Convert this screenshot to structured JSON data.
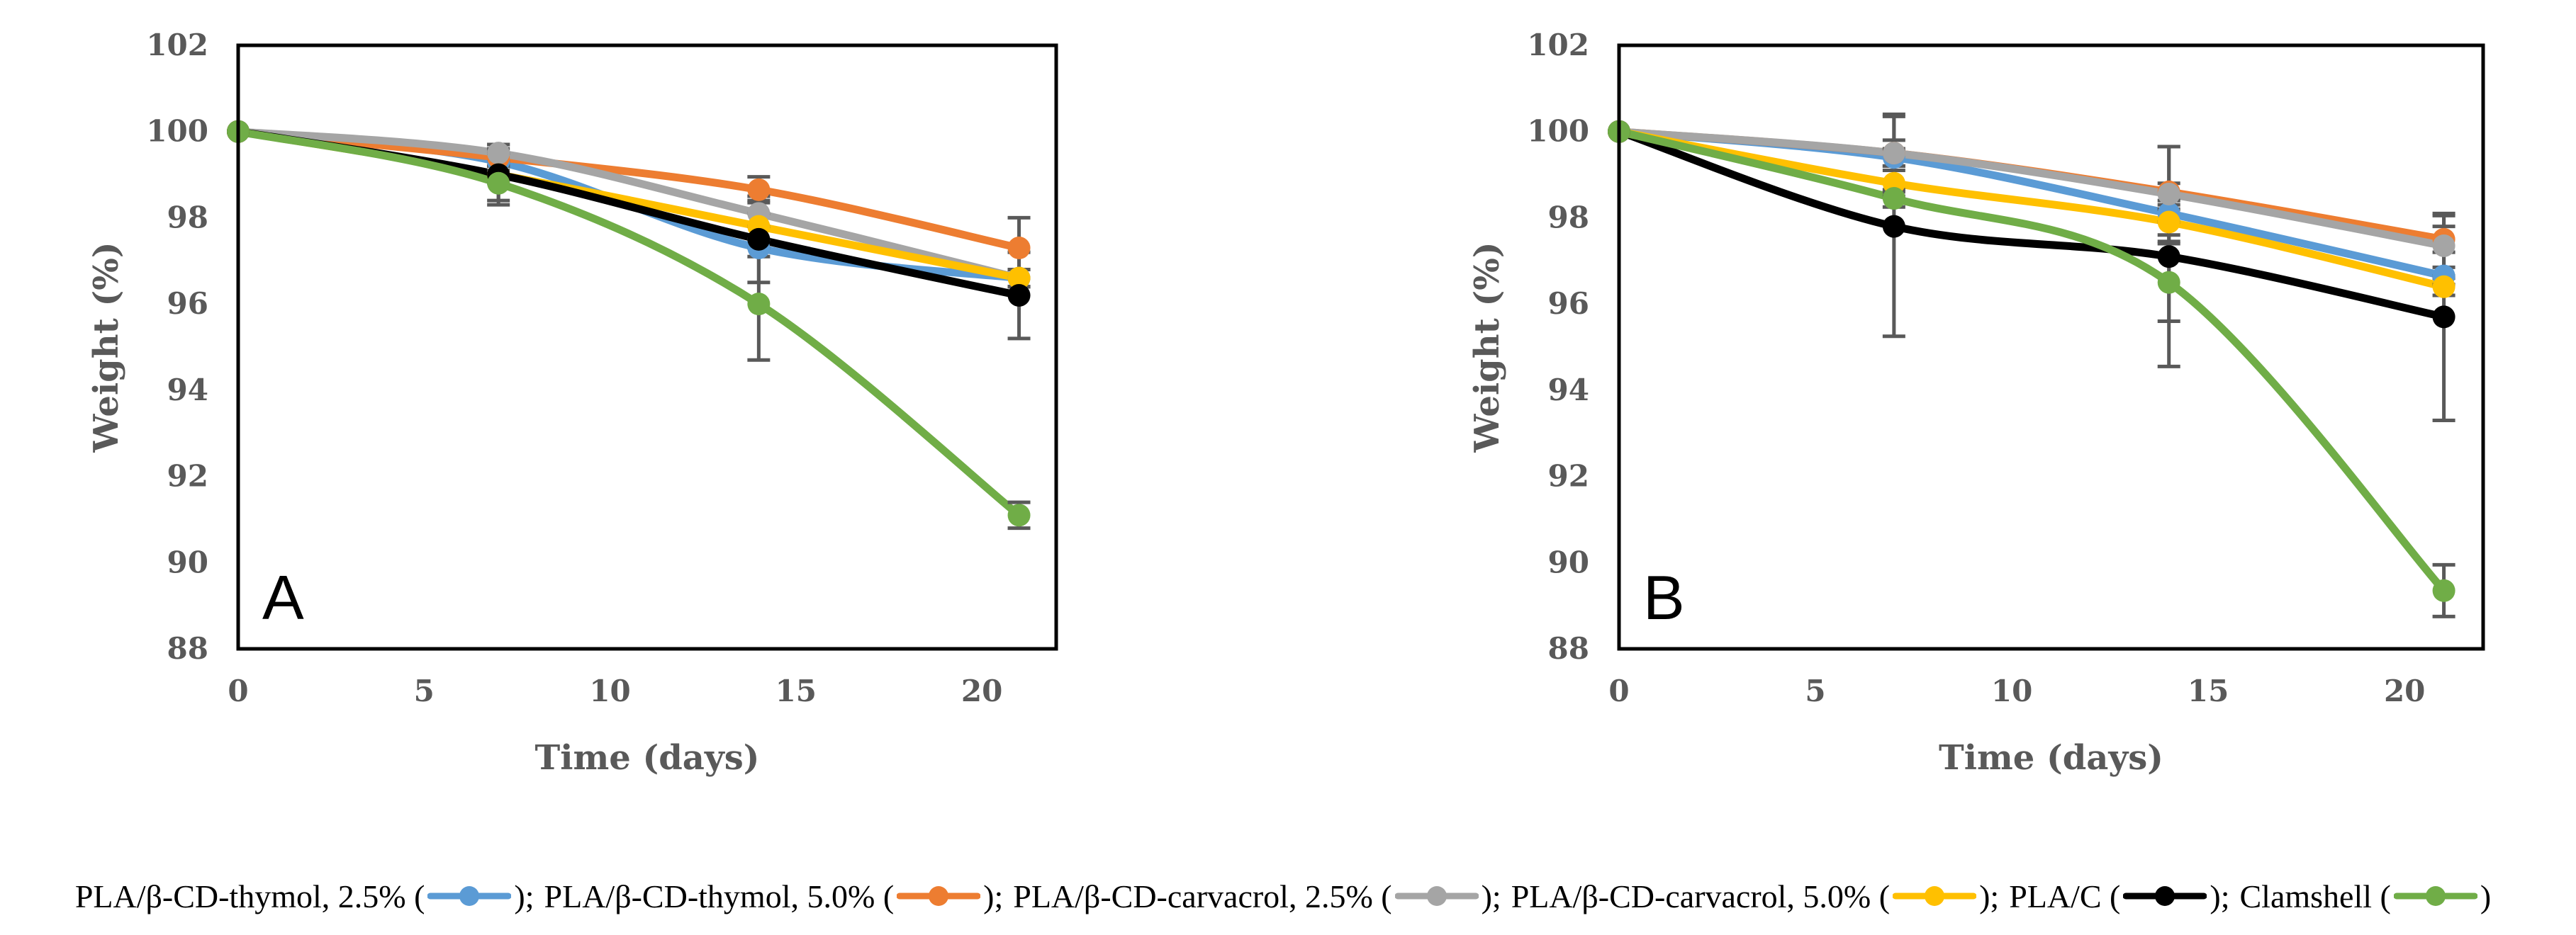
{
  "colors": {
    "blue": "#5B9BD5",
    "orange": "#ED7D31",
    "gray": "#A5A5A5",
    "yellow": "#FFC000",
    "black": "#000000",
    "green": "#70AD47",
    "axis_text": "#595959",
    "error_bar": "#595959"
  },
  "legend": {
    "items": [
      {
        "label": "PLA/β-CD-thymol,  2.5% (",
        "color": "#5B9BD5",
        "sep": ";"
      },
      {
        "label": " PLA/β-CD-thymol,  5.0% (",
        "color": "#ED7D31",
        "sep": ";"
      },
      {
        "label": " PLA/β-CD-carvacrol,  2.5% (",
        "color": "#A5A5A5",
        "sep": ";"
      },
      {
        "label": " PLA/β-CD-carvacrol,  5.0% (",
        "color": "#FFC000",
        "sep": ";"
      },
      {
        "label": " PLA/C (",
        "color": "#000000",
        "sep": ";"
      },
      {
        "label": " Clamshell (",
        "color": "#70AD47",
        "sep": ""
      }
    ]
  },
  "chart_data": [
    {
      "type": "line",
      "panel_label": "A",
      "title": "",
      "xlabel": "Time (days)",
      "ylabel": "Weight (%)",
      "xlim": [
        0,
        22
      ],
      "ylim": [
        88,
        102
      ],
      "x_ticks": [
        0,
        5,
        10,
        15,
        20
      ],
      "y_ticks": [
        88,
        90,
        92,
        94,
        96,
        98,
        100,
        102
      ],
      "x": [
        0,
        7,
        14,
        21
      ],
      "series": [
        {
          "name": "PLA/β-CD-thymol, 2.5%",
          "color": "#5B9BD5",
          "values": [
            100,
            99.3,
            97.3,
            96.6
          ],
          "errors": [
            0,
            0.2,
            0.2,
            0.2
          ]
        },
        {
          "name": "PLA/β-CD-thymol, 5.0%",
          "color": "#ED7D31",
          "values": [
            100,
            99.4,
            98.65,
            97.3
          ],
          "errors": [
            0,
            0.2,
            0.3,
            0.7
          ]
        },
        {
          "name": "PLA/β-CD-carvacrol, 2.5%",
          "color": "#A5A5A5",
          "values": [
            100,
            99.5,
            98.1,
            96.6
          ],
          "errors": [
            0,
            0.2,
            0.3,
            0.2
          ]
        },
        {
          "name": "PLA/β-CD-carvacrol, 5.0%",
          "color": "#FFC000",
          "values": [
            100,
            99.0,
            97.8,
            96.6
          ],
          "errors": [
            0,
            0.2,
            0.3,
            0.2
          ]
        },
        {
          "name": "PLA/C",
          "color": "#000000",
          "values": [
            100,
            99.0,
            97.5,
            96.2
          ],
          "errors": [
            0,
            0.7,
            1.0,
            1.0
          ]
        },
        {
          "name": "Clamshell",
          "color": "#70AD47",
          "values": [
            100,
            98.8,
            96.0,
            91.1
          ],
          "errors": [
            0,
            0.4,
            1.3,
            0.3
          ]
        }
      ]
    },
    {
      "type": "line",
      "panel_label": "B",
      "title": "",
      "xlabel": "Time (days)",
      "ylabel": "Weight (%)",
      "xlim": [
        0,
        22
      ],
      "ylim": [
        88,
        102
      ],
      "x_ticks": [
        0,
        5,
        10,
        15,
        20
      ],
      "y_ticks": [
        88,
        90,
        92,
        94,
        96,
        98,
        100,
        102
      ],
      "x": [
        0,
        7,
        14,
        21
      ],
      "series": [
        {
          "name": "PLA/β-CD-thymol, 2.5%",
          "color": "#5B9BD5",
          "values": [
            100,
            99.4,
            98.1,
            96.65
          ],
          "errors": [
            0,
            0.2,
            0.2,
            0.2
          ]
        },
        {
          "name": "PLA/β-CD-thymol, 5.0%",
          "color": "#ED7D31",
          "values": [
            100,
            99.5,
            98.6,
            97.5
          ],
          "errors": [
            0,
            0.3,
            0.2,
            0.3
          ]
        },
        {
          "name": "PLA/β-CD-carvacrol, 2.5%",
          "color": "#A5A5A5",
          "values": [
            100,
            99.5,
            98.55,
            97.35
          ],
          "errors": [
            0,
            0.9,
            1.1,
            0.7
          ]
        },
        {
          "name": "PLA/β-CD-carvacrol, 5.0%",
          "color": "#FFC000",
          "values": [
            100,
            98.8,
            97.9,
            96.4
          ],
          "errors": [
            0,
            0.3,
            0.3,
            0.2
          ]
        },
        {
          "name": "PLA/C",
          "color": "#000000",
          "values": [
            100,
            97.8,
            97.1,
            95.7
          ],
          "errors": [
            0,
            2.55,
            2.55,
            2.4
          ]
        },
        {
          "name": "Clamshell",
          "color": "#70AD47",
          "values": [
            100,
            98.45,
            96.5,
            89.35
          ],
          "errors": [
            0,
            0.2,
            0.9,
            0.6
          ]
        }
      ]
    }
  ]
}
